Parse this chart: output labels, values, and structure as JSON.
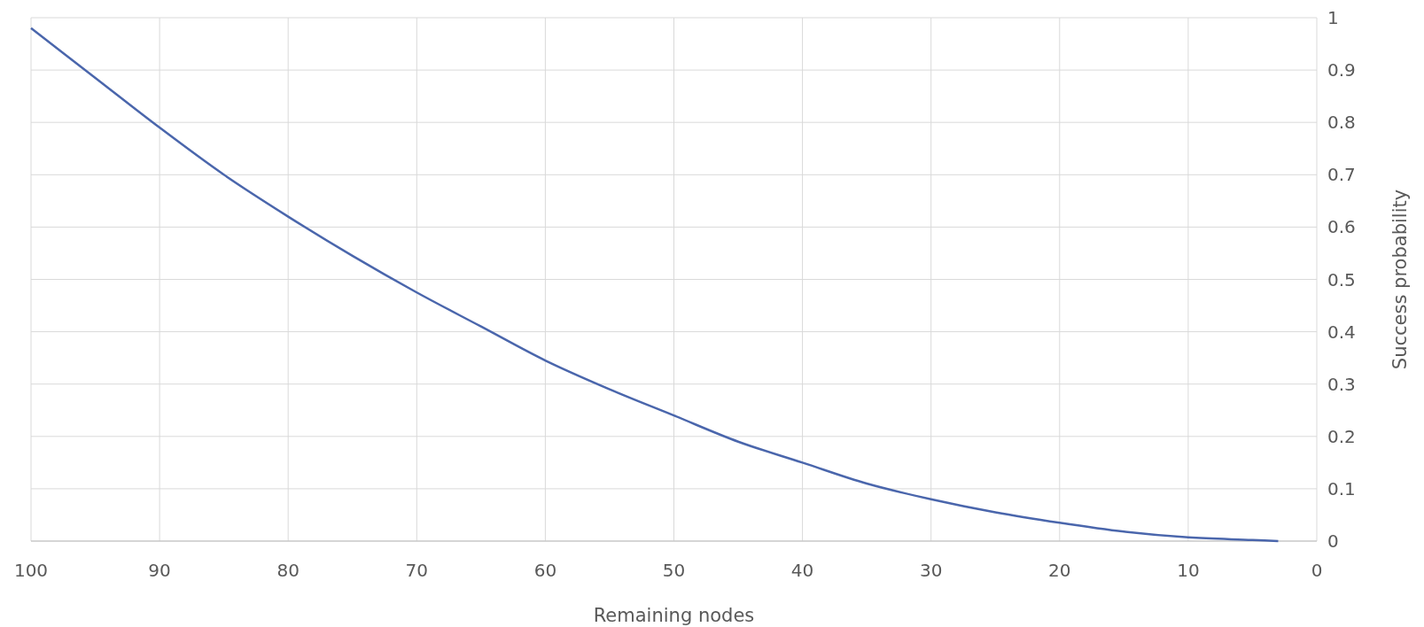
{
  "chart_data": {
    "type": "line",
    "xlabel": "Remaining nodes",
    "ylabel": "Success probability",
    "x": [
      100,
      95,
      90,
      85,
      80,
      75,
      70,
      65,
      60,
      55,
      50,
      45,
      40,
      35,
      30,
      25,
      20,
      15,
      10,
      5,
      3
    ],
    "series": [
      {
        "color": "#4a66ac",
        "values": [
          0.98,
          0.885,
          0.79,
          0.7,
          0.62,
          0.545,
          0.475,
          0.41,
          0.345,
          0.29,
          0.24,
          0.19,
          0.15,
          0.11,
          0.08,
          0.055,
          0.035,
          0.018,
          0.007,
          0.002,
          0
        ]
      }
    ],
    "xlim": [
      100,
      0
    ],
    "ylim": [
      0,
      1
    ],
    "xticks": [
      100,
      90,
      80,
      70,
      60,
      50,
      40,
      30,
      20,
      10,
      0
    ],
    "yticks": [
      0,
      0.1,
      0.2,
      0.3,
      0.4,
      0.5,
      0.6,
      0.7,
      0.8,
      0.9,
      1
    ],
    "grid": true,
    "marker": "none",
    "line_style": "solid"
  }
}
